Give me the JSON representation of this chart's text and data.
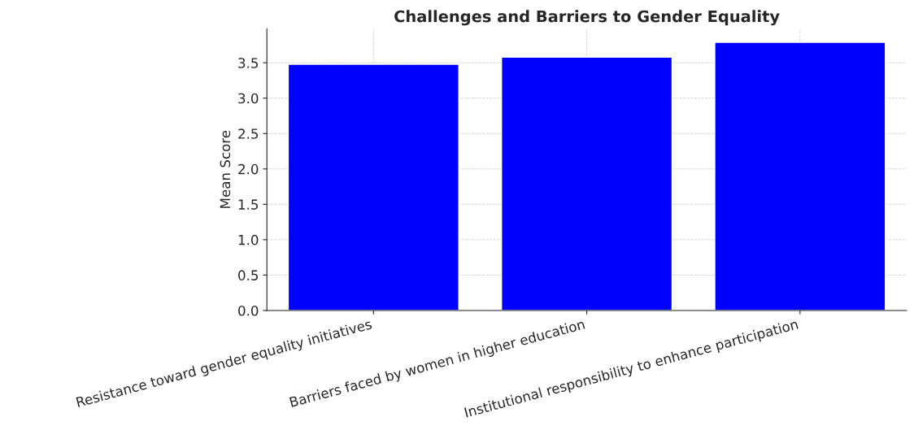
{
  "chart_data": {
    "type": "bar",
    "title": "Challenges and Barriers to Gender Equality",
    "ylabel": "Mean Score",
    "categories": [
      "Resistance toward gender equality initiatives",
      "Barriers faced by women in higher education",
      "Institutional responsibility to enhance participation"
    ],
    "values": [
      3.48,
      3.58,
      3.79
    ],
    "color": "#0000ff",
    "ylim": [
      0,
      3.98
    ],
    "yticks": [
      {
        "value": 0,
        "label": "0.0"
      },
      0.5,
      {
        "value": 1,
        "label": "1.0"
      },
      1.5,
      {
        "value": 2,
        "label": "2.0"
      },
      2.5,
      {
        "value": 3,
        "label": "3.0"
      },
      3.5
    ],
    "grid": true
  }
}
